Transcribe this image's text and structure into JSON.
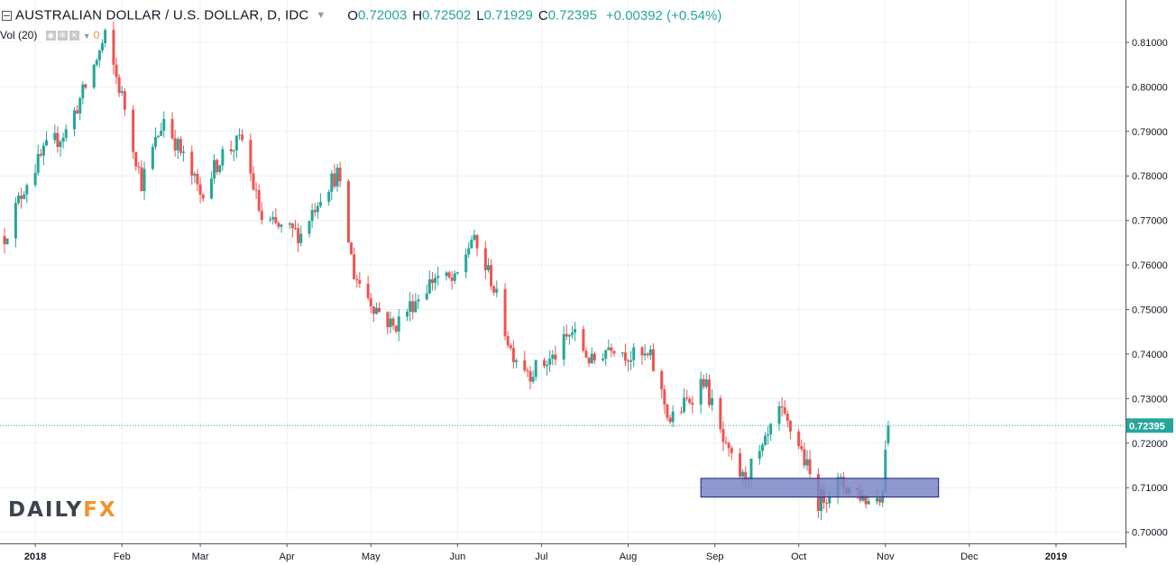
{
  "header": {
    "title": "AUSTRALIAN DOLLAR / U.S. DOLLAR, D, IDC",
    "open_label": "O",
    "open": "0.72003",
    "high_label": "H",
    "high": "0.72502",
    "low_label": "L",
    "low": "0.71929",
    "close_label": "C",
    "close": "0.72395",
    "change": "+0.00392 (+0.54%)"
  },
  "volume": {
    "label": "Vol (20)",
    "value": "0"
  },
  "logo": {
    "part1": "DAILY",
    "part2": "FX"
  },
  "icons": [
    "collapse-icon",
    "dropdown-caret-icon",
    "eye-icon",
    "settings-icon",
    "close-icon"
  ],
  "colors": {
    "up": "#26a69a",
    "down": "#ef5350",
    "price_tag": "#26a69a",
    "zone_fill": "#7b86c7",
    "zone_border": "#1a237e",
    "logo_accent": "#f0932b"
  },
  "chart_data": {
    "type": "candlestick",
    "x_ticks": [
      "2018",
      "Feb",
      "Mar",
      "Apr",
      "May",
      "Jun",
      "Jul",
      "Aug",
      "Sep",
      "Oct",
      "Nov",
      "Dec",
      "2019"
    ],
    "y_ticks": [
      "0.81000",
      "0.80000",
      "0.79000",
      "0.78000",
      "0.77000",
      "0.76000",
      "0.75000",
      "0.74000",
      "0.73000",
      "0.72000",
      "0.71000",
      "0.70000"
    ],
    "ylim": [
      0.6975,
      0.8195
    ],
    "last_price": 0.72395,
    "last_price_label": "0.72395",
    "grid": true,
    "support_zone": {
      "y_low": 0.7079,
      "y_high": 0.7121,
      "x_start": "2018-08-27",
      "x_end": "2018-11-20"
    },
    "anchors": [
      [
        "2017-12-21",
        0.7665
      ],
      [
        "2017-12-29",
        0.779
      ],
      [
        "2018-01-05",
        0.786
      ],
      [
        "2018-01-12",
        0.79
      ],
      [
        "2018-01-19",
        0.8
      ],
      [
        "2018-01-26",
        0.811
      ],
      [
        "2018-02-02",
        0.7955
      ],
      [
        "2018-02-08",
        0.7785
      ],
      [
        "2018-02-16",
        0.793
      ],
      [
        "2018-02-23",
        0.784
      ],
      [
        "2018-03-01",
        0.776
      ],
      [
        "2018-03-09",
        0.785
      ],
      [
        "2018-03-16",
        0.788
      ],
      [
        "2018-03-23",
        0.77
      ],
      [
        "2018-03-30",
        0.768
      ],
      [
        "2018-04-06",
        0.767
      ],
      [
        "2018-04-13",
        0.776
      ],
      [
        "2018-04-19",
        0.7805
      ],
      [
        "2018-04-25",
        0.758
      ],
      [
        "2018-05-02",
        0.751
      ],
      [
        "2018-05-09",
        0.746
      ],
      [
        "2018-05-16",
        0.7515
      ],
      [
        "2018-05-24",
        0.7575
      ],
      [
        "2018-05-31",
        0.756
      ],
      [
        "2018-06-06",
        0.766
      ],
      [
        "2018-06-13",
        0.757
      ],
      [
        "2018-06-20",
        0.741
      ],
      [
        "2018-06-27",
        0.736
      ],
      [
        "2018-07-05",
        0.739
      ],
      [
        "2018-07-12",
        0.745
      ],
      [
        "2018-07-19",
        0.738
      ],
      [
        "2018-07-26",
        0.7425
      ],
      [
        "2018-08-02",
        0.7395
      ],
      [
        "2018-08-09",
        0.739
      ],
      [
        "2018-08-16",
        0.725
      ],
      [
        "2018-08-23",
        0.73
      ],
      [
        "2018-08-28",
        0.7345
      ],
      [
        "2018-09-05",
        0.718
      ],
      [
        "2018-09-11",
        0.712
      ],
      [
        "2018-09-18",
        0.718
      ],
      [
        "2018-09-24",
        0.727
      ],
      [
        "2018-10-01",
        0.72
      ],
      [
        "2018-10-08",
        0.707
      ],
      [
        "2018-10-15",
        0.711
      ],
      [
        "2018-10-22",
        0.709
      ],
      [
        "2018-10-26",
        0.707
      ],
      [
        "2018-10-31",
        0.709
      ],
      [
        "2018-11-01",
        0.72003
      ]
    ],
    "last_candle": {
      "date": "2018-11-02",
      "open": 0.72003,
      "high": 0.72502,
      "low": 0.71929,
      "close": 0.72395
    }
  }
}
